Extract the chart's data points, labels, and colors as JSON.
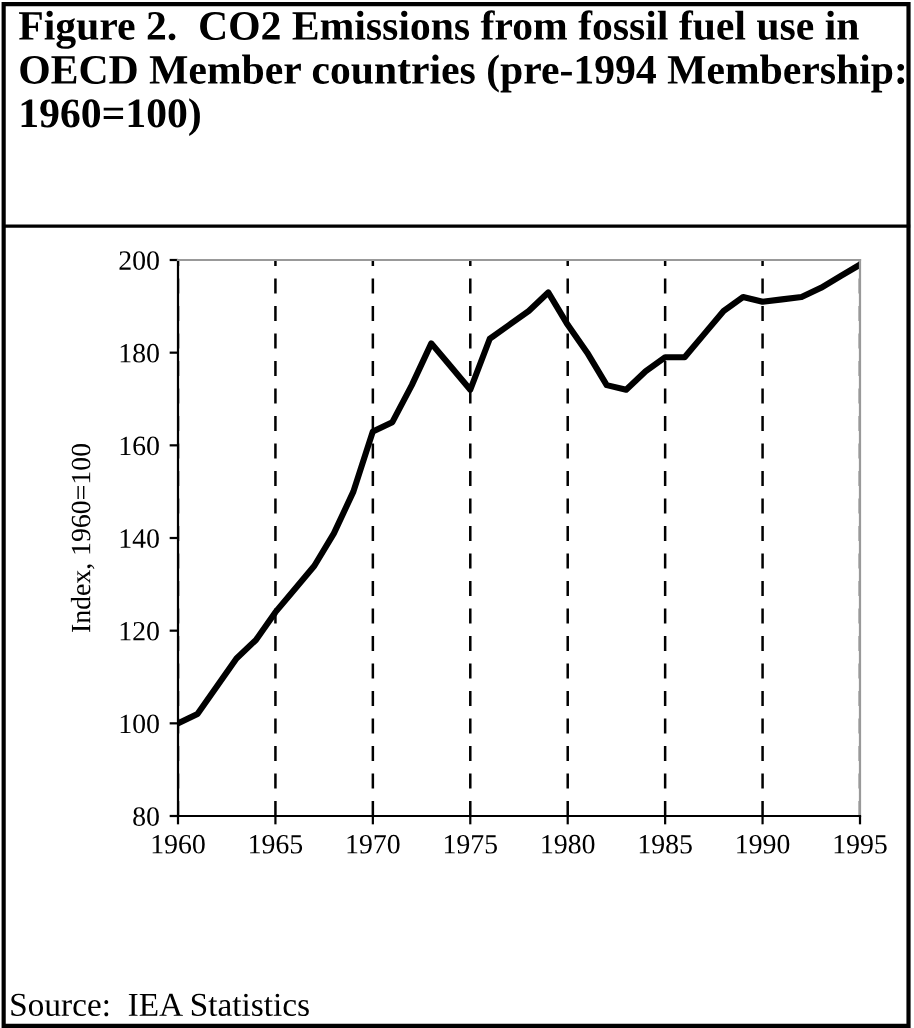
{
  "chart_data": {
    "type": "line",
    "title": "Figure 2.  CO2 Emissions from fossil fuel use in OECD Member countries (pre-1994 Membership: 1960=100)",
    "ylabel": "Index, 1960=100",
    "x": [
      1960,
      1961,
      1962,
      1963,
      1964,
      1965,
      1966,
      1967,
      1968,
      1969,
      1970,
      1971,
      1972,
      1973,
      1974,
      1975,
      1976,
      1977,
      1978,
      1979,
      1980,
      1981,
      1982,
      1983,
      1984,
      1985,
      1986,
      1987,
      1988,
      1989,
      1990,
      1991,
      1992,
      1993,
      1994,
      1995
    ],
    "series": [
      {
        "color": "#000000",
        "values": [
          100,
          102,
          108,
          114,
          118,
          124,
          129,
          134,
          141,
          150,
          163,
          165,
          173,
          182,
          177,
          172,
          183,
          186,
          189,
          193,
          186,
          180,
          173,
          172,
          176,
          179,
          179,
          184,
          189,
          192,
          191,
          191.5,
          192,
          194,
          196.5,
          199
        ]
      }
    ],
    "xlim": [
      1960,
      1995
    ],
    "xticks": [
      1960,
      1965,
      1970,
      1975,
      1980,
      1985,
      1990,
      1995
    ],
    "ylim": [
      80,
      200
    ],
    "yticks": [
      80,
      100,
      120,
      140,
      160,
      180,
      200
    ],
    "grid": "x",
    "line_style": "solid",
    "marker": "none",
    "legend": false,
    "annotations": [
      "Source:  IEA Statistics"
    ]
  }
}
